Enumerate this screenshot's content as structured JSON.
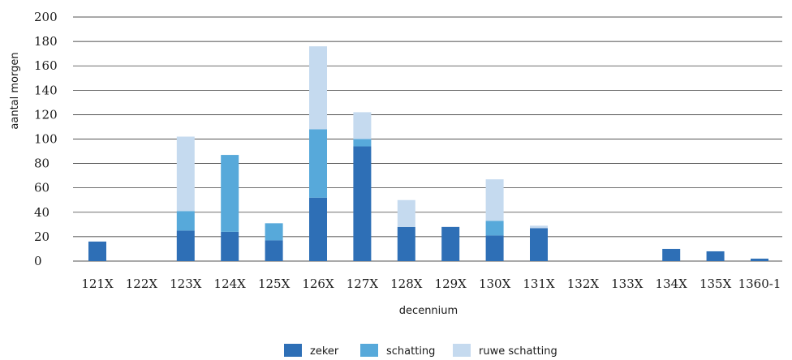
{
  "chart_data": {
    "type": "bar",
    "stacked": true,
    "categories": [
      "121X",
      "122X",
      "123X",
      "124X",
      "125X",
      "126X",
      "127X",
      "128X",
      "129X",
      "130X",
      "131X",
      "132X",
      "133X",
      "134X",
      "135X",
      "1360-1"
    ],
    "series": [
      {
        "name": "zeker",
        "color": "#2e6fb6",
        "values": [
          16,
          0,
          25,
          24,
          17,
          52,
          94,
          28,
          28,
          21,
          27,
          0,
          0,
          10,
          8,
          2
        ]
      },
      {
        "name": "schatting",
        "color": "#57a9da",
        "values": [
          0,
          0,
          16,
          63,
          14,
          56,
          6,
          0,
          0,
          12,
          0,
          0,
          0,
          0,
          0,
          0
        ]
      },
      {
        "name": "ruwe schatting",
        "color": "#c5daef",
        "values": [
          0,
          0,
          61,
          0,
          0,
          68,
          22,
          22,
          0,
          34,
          2,
          0,
          0,
          0,
          0,
          0
        ]
      }
    ],
    "xlabel": "decennium",
    "ylabel": "aantal morgen",
    "ylim": [
      0,
      200
    ],
    "yticks": [
      0,
      20,
      40,
      60,
      80,
      100,
      120,
      140,
      160,
      180,
      200
    ],
    "ytick_labels": [
      "0",
      "20",
      "40",
      "60",
      "80",
      "100",
      "120",
      "140",
      "160",
      "180",
      "200"
    ],
    "grid": true,
    "legend_position": "bottom-center"
  }
}
